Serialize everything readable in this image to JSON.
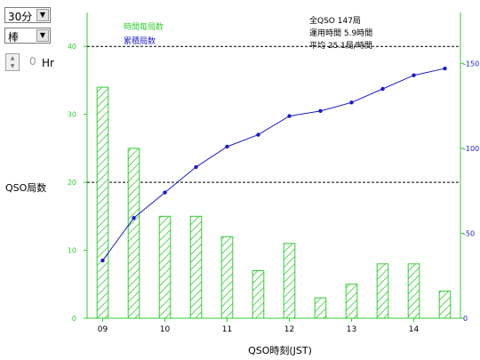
{
  "controls": {
    "interval": "30分",
    "chart_style": "棒",
    "hour_value": "0",
    "hour_unit": "Hr"
  },
  "colors": {
    "bar": "#33cc33",
    "line": "#1a1acc",
    "left_axis": "#33cc33",
    "right_axis": "#33cc33"
  },
  "chart_data": {
    "type": "bar",
    "title": "",
    "xlabel": "QSO時刻(JST)",
    "ylabel": "QSO局数",
    "x_tick_labels": [
      "09",
      "10",
      "11",
      "12",
      "13",
      "14"
    ],
    "left_ticks": [
      "0",
      "10",
      "20",
      "30",
      "40"
    ],
    "right_ticks": [
      "0",
      "-50",
      "-100",
      "-150"
    ],
    "ylim_left": [
      0,
      45
    ],
    "ylim_right": [
      0,
      180
    ],
    "reference_lines": [
      20,
      40
    ],
    "grid": false,
    "legend": {
      "position": "top-left",
      "bar_label": "時間毎局数",
      "line_label": "累積局数"
    },
    "summary": [
      "全QSO 147局",
      "運用時間 5.9時間",
      "平均 25.1局/時間"
    ],
    "categories": [
      "09:00",
      "09:30",
      "10:00",
      "10:30",
      "11:00",
      "11:30",
      "12:00",
      "12:30",
      "13:00",
      "13:30",
      "14:00",
      "14:30"
    ],
    "series": [
      {
        "name": "時間毎局数",
        "type": "bar",
        "axis": "left",
        "values": [
          34,
          25,
          15,
          15,
          12,
          7,
          11,
          3,
          5,
          8,
          8,
          4
        ]
      },
      {
        "name": "累積局数",
        "type": "line",
        "axis": "right",
        "values": [
          34,
          59,
          74,
          89,
          101,
          108,
          119,
          122,
          127,
          135,
          143,
          147
        ]
      }
    ]
  }
}
